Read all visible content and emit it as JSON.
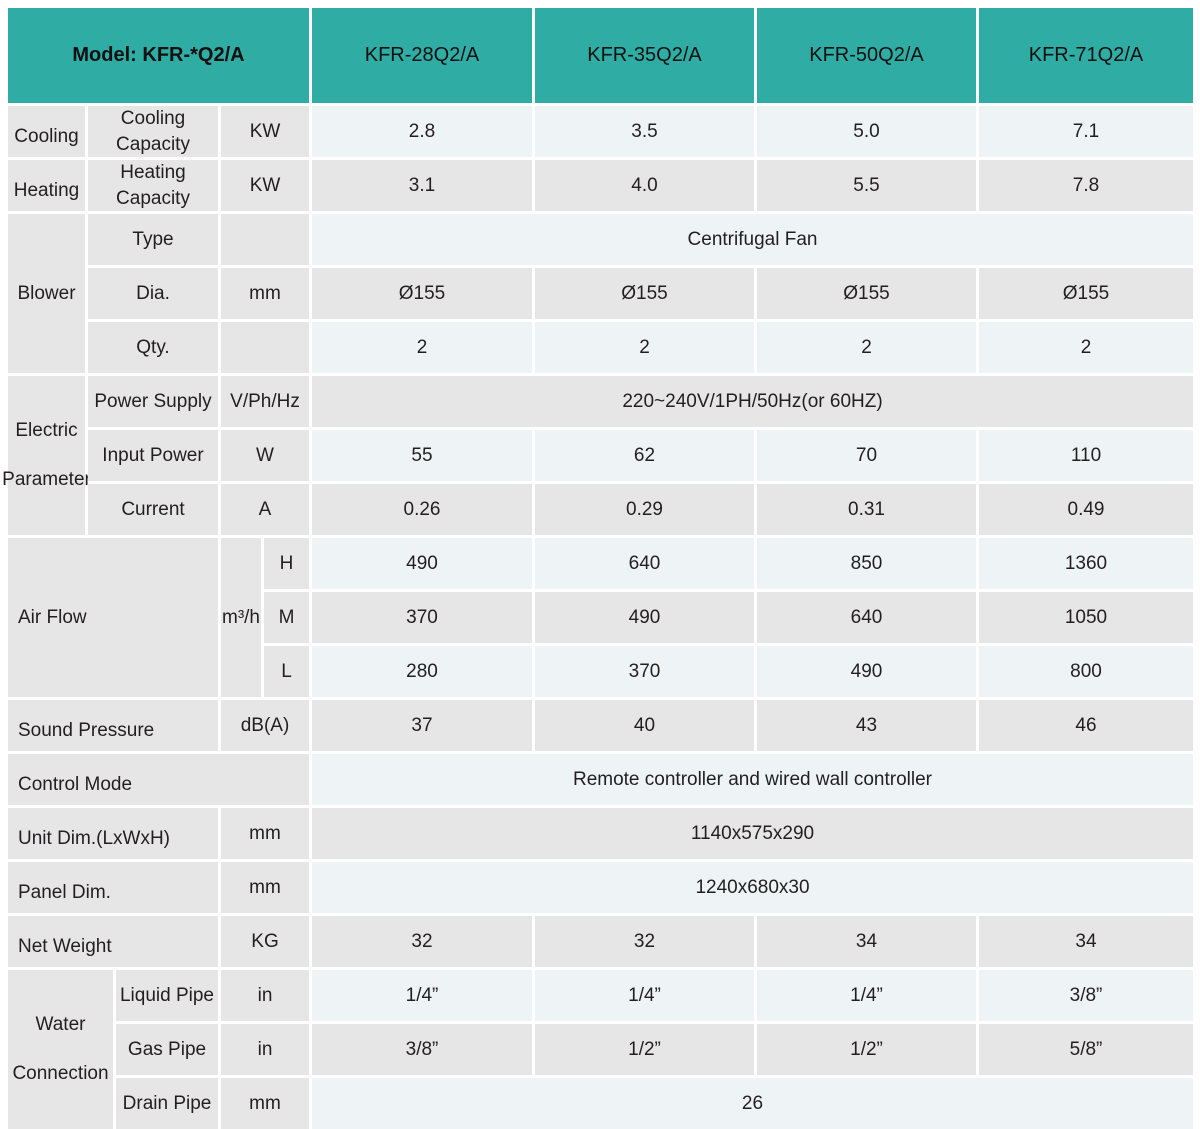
{
  "header": {
    "model": "Model: KFR-*Q2/A",
    "models": [
      "KFR-28Q2/A",
      "KFR-35Q2/A",
      "KFR-50Q2/A",
      "KFR-71Q2/A"
    ]
  },
  "sections": {
    "cooling": {
      "group": "Cooling",
      "label": "Cooling Capacity",
      "unit": "KW",
      "values": [
        "2.8",
        "3.5",
        "5.0",
        "7.1"
      ]
    },
    "heating": {
      "group": "Heating",
      "label": "Heating Capacity",
      "unit": "KW",
      "values": [
        "3.1",
        "4.0",
        "5.5",
        "7.8"
      ]
    },
    "blower": {
      "group": "Blower",
      "type": {
        "label": "Type",
        "unit": "",
        "value": "Centrifugal Fan"
      },
      "dia": {
        "label": "Dia.",
        "unit": "mm",
        "values": [
          "Ø155",
          "Ø155",
          "Ø155",
          "Ø155"
        ]
      },
      "qty": {
        "label": "Qty.",
        "unit": "",
        "values": [
          "2",
          "2",
          "2",
          "2"
        ]
      }
    },
    "electric": {
      "group": "Electric Parameter",
      "power_supply": {
        "label": "Power Supply",
        "unit": "V/Ph/Hz",
        "value": "220~240V/1PH/50Hz(or 60HZ)"
      },
      "input_power": {
        "label": "Input Power",
        "unit": "W",
        "values": [
          "55",
          "62",
          "70",
          "110"
        ]
      },
      "current": {
        "label": "Current",
        "unit": "A",
        "values": [
          "0.26",
          "0.29",
          "0.31",
          "0.49"
        ]
      }
    },
    "air_flow": {
      "group": "Air Flow",
      "unit": "m³/h",
      "h": {
        "label": "H",
        "values": [
          "490",
          "640",
          "850",
          "1360"
        ]
      },
      "m": {
        "label": "M",
        "values": [
          "370",
          "490",
          "640",
          "1050"
        ]
      },
      "l": {
        "label": "L",
        "values": [
          "280",
          "370",
          "490",
          "800"
        ]
      }
    },
    "sound": {
      "label": "Sound Pressure",
      "unit": "dB(A)",
      "values": [
        "37",
        "40",
        "43",
        "46"
      ]
    },
    "control": {
      "label": "Control Mode",
      "value": "Remote controller and wired wall controller"
    },
    "unit_dim": {
      "label": "Unit Dim.(LxWxH)",
      "unit": "mm",
      "value": "1140x575x290"
    },
    "panel_dim": {
      "label": "Panel Dim.",
      "unit": "mm",
      "value": "1240x680x30"
    },
    "net_weight": {
      "label": "Net Weight",
      "unit": "KG",
      "values": [
        "32",
        "32",
        "34",
        "34"
      ]
    },
    "water": {
      "group": "Water Connection",
      "liquid": {
        "label": "Liquid Pipe",
        "unit": "in",
        "values": [
          "1/4”",
          "1/4”",
          "1/4”",
          "3/8”"
        ]
      },
      "gas": {
        "label": "Gas Pipe",
        "unit": "in",
        "values": [
          "3/8”",
          "1/2”",
          "1/2”",
          "5/8”"
        ]
      },
      "drain": {
        "label": "Drain Pipe",
        "unit": "mm",
        "value": "26"
      }
    }
  },
  "colors": {
    "teal": "#2faca4",
    "cell_gray": "#e6e6e7",
    "cell_light": "#eef3f5",
    "divider": "#ffffff"
  }
}
